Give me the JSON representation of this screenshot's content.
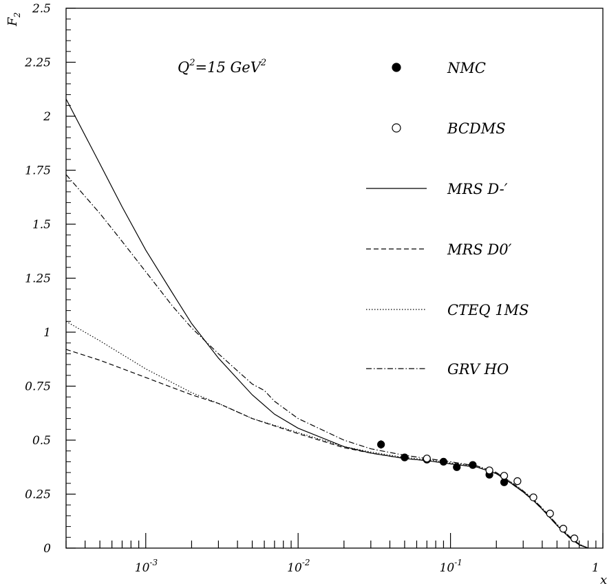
{
  "chart_data": {
    "type": "scatter",
    "xlabel": "x",
    "ylabel": "F",
    "ylabel_sub": "2",
    "xscale": "log",
    "xlim": [
      0.0003,
      1.0
    ],
    "ylim": [
      0,
      2.5
    ],
    "grid": false,
    "annotation": {
      "parts": [
        {
          "text": "Q",
          "sup": false
        },
        {
          "text": "2",
          "sup": true
        },
        {
          "text": "=15 GeV",
          "sup": false
        },
        {
          "text": "2",
          "sup": true
        }
      ]
    },
    "x_ticks": [
      {
        "base": "10",
        "exp": "-3",
        "value": 0.001
      },
      {
        "base": "10",
        "exp": "-2",
        "value": 0.01
      },
      {
        "base": "10",
        "exp": "-1",
        "value": 0.1
      },
      {
        "base": "1",
        "exp": "",
        "value": 1
      }
    ],
    "y_ticks": [
      {
        "label": "0",
        "value": 0
      },
      {
        "label": "0.25",
        "value": 0.25
      },
      {
        "label": "0.5",
        "value": 0.5
      },
      {
        "label": "0.75",
        "value": 0.75
      },
      {
        "label": "1",
        "value": 1
      },
      {
        "label": "1.25",
        "value": 1.25
      },
      {
        "label": "1.5",
        "value": 1.5
      },
      {
        "label": "1.75",
        "value": 1.75
      },
      {
        "label": "2",
        "value": 2
      },
      {
        "label": "2.25",
        "value": 2.25
      },
      {
        "label": "2.5",
        "value": 2.5
      }
    ],
    "legend_placement": "right",
    "points": [
      {
        "name": "NMC",
        "marker": "filled-circle",
        "x": [
          0.035,
          0.05,
          0.07,
          0.09,
          0.11,
          0.14,
          0.18,
          0.225
        ],
        "y": [
          0.48,
          0.42,
          0.41,
          0.4,
          0.375,
          0.385,
          0.34,
          0.305
        ],
        "yerr": [
          0.02,
          0.008,
          0.008,
          0.008,
          0.008,
          0.008,
          0.008,
          0.008
        ]
      },
      {
        "name": "BCDMS",
        "marker": "open-circle",
        "x": [
          0.07,
          0.18,
          0.225,
          0.275,
          0.35,
          0.45,
          0.55,
          0.65
        ],
        "y": [
          0.415,
          0.36,
          0.335,
          0.31,
          0.235,
          0.16,
          0.09,
          0.045
        ],
        "yerr": [
          0.005,
          0.006,
          0.006,
          0.005,
          0.005,
          0.005,
          0.004,
          0.003
        ]
      }
    ],
    "curves": [
      {
        "name": "MRS D-′",
        "style": "solid",
        "x": [
          0.0003,
          0.0005,
          0.0007,
          0.001,
          0.0015,
          0.002,
          0.003,
          0.005,
          0.007,
          0.01,
          0.02,
          0.03,
          0.05,
          0.07,
          0.1,
          0.15,
          0.2,
          0.25,
          0.3,
          0.35,
          0.4,
          0.5,
          0.6,
          0.7,
          0.8
        ],
        "y": [
          2.08,
          1.78,
          1.58,
          1.38,
          1.18,
          1.04,
          0.88,
          0.71,
          0.62,
          0.555,
          0.47,
          0.44,
          0.415,
          0.405,
          0.39,
          0.375,
          0.345,
          0.3,
          0.26,
          0.22,
          0.18,
          0.105,
          0.05,
          0.015,
          0.0
        ]
      },
      {
        "name": "MRS D0′",
        "style": "dashed",
        "x": [
          0.0003,
          0.0005,
          0.001,
          0.002,
          0.003,
          0.005,
          0.01,
          0.02,
          0.03,
          0.05,
          0.07,
          0.1,
          0.15,
          0.2,
          0.25,
          0.3,
          0.35,
          0.4,
          0.5,
          0.6,
          0.7,
          0.8
        ],
        "y": [
          0.92,
          0.87,
          0.79,
          0.71,
          0.67,
          0.6,
          0.53,
          0.465,
          0.44,
          0.415,
          0.405,
          0.39,
          0.375,
          0.345,
          0.3,
          0.26,
          0.22,
          0.18,
          0.105,
          0.05,
          0.015,
          0.0
        ]
      },
      {
        "name": "CTEQ 1MS",
        "style": "dotted",
        "x": [
          0.0003,
          0.0005,
          0.001,
          0.002,
          0.003,
          0.005,
          0.01,
          0.02,
          0.03,
          0.05,
          0.07,
          0.1,
          0.15,
          0.2,
          0.25,
          0.3,
          0.35,
          0.4,
          0.5,
          0.6,
          0.7,
          0.8
        ],
        "y": [
          1.05,
          0.96,
          0.83,
          0.72,
          0.67,
          0.6,
          0.535,
          0.47,
          0.445,
          0.42,
          0.41,
          0.395,
          0.38,
          0.35,
          0.305,
          0.265,
          0.225,
          0.185,
          0.11,
          0.055,
          0.018,
          0.0
        ]
      },
      {
        "name": "GRV HO",
        "style": "dash-dot",
        "x": [
          0.0003,
          0.0005,
          0.0007,
          0.001,
          0.0015,
          0.002,
          0.003,
          0.005,
          0.006,
          0.007,
          0.01,
          0.02,
          0.03,
          0.05,
          0.07,
          0.1,
          0.15,
          0.2,
          0.25,
          0.3,
          0.35,
          0.4,
          0.5,
          0.6,
          0.7,
          0.8
        ],
        "y": [
          1.73,
          1.55,
          1.42,
          1.28,
          1.12,
          1.02,
          0.9,
          0.76,
          0.73,
          0.68,
          0.6,
          0.5,
          0.46,
          0.43,
          0.415,
          0.4,
          0.38,
          0.35,
          0.305,
          0.265,
          0.225,
          0.185,
          0.11,
          0.055,
          0.018,
          0.0
        ]
      }
    ]
  }
}
